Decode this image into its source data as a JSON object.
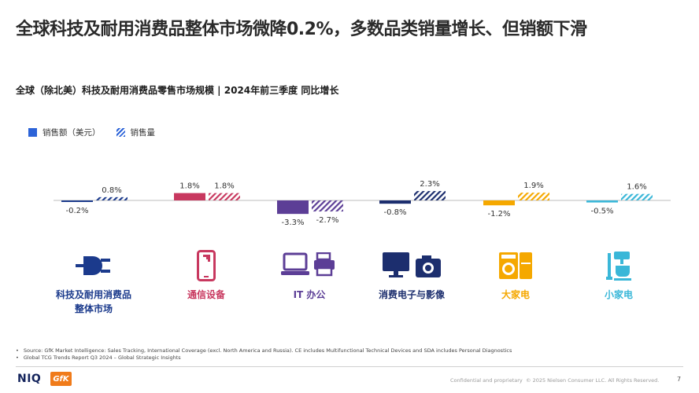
{
  "slide": {
    "title": "全球科技及耐用消费品整体市场微降0.2%，多数品类销量增长、但销额下滑",
    "subtitle": "全球（除北美）科技及耐用消费品零售市场规模 | 2024年前三季度 同比增长"
  },
  "legend": {
    "value_label": "销售额（美元）",
    "volume_label": "销售量"
  },
  "categories": [
    {
      "name": "科技及耐用消费品整体市场",
      "line1": "科技及耐用消费品",
      "line2": "整体市场",
      "color": "#1b3a8c",
      "icon": "plug-icon"
    },
    {
      "name": "通信设备",
      "line1": "通信设备",
      "line2": "",
      "color": "#c8385f",
      "icon": "smartphone-icon"
    },
    {
      "name": "IT 办公",
      "line1": "IT 办公",
      "line2": "",
      "color": "#5c3e96",
      "icon": "laptop-printer-icon"
    },
    {
      "name": "消费电子与影像",
      "line1": "消费电子与影像",
      "line2": "",
      "color": "#1c2e6e",
      "icon": "monitor-camera-icon"
    },
    {
      "name": "大家电",
      "line1": "大家电",
      "line2": "",
      "color": "#f5a800",
      "icon": "washing-machine-icon"
    },
    {
      "name": "小家电",
      "line1": "小家电",
      "line2": "",
      "color": "#3ab7d8",
      "icon": "coffee-machine-icon"
    }
  ],
  "chart_data": {
    "type": "bar",
    "categories": [
      "科技及耐用消费品整体市场",
      "通信设备",
      "IT 办公",
      "消费电子与影像",
      "大家电",
      "小家电"
    ],
    "series": [
      {
        "name": "销售额（美元）",
        "values": [
          -0.2,
          1.8,
          -3.3,
          -0.8,
          -1.2,
          -0.5
        ],
        "labels": [
          "-0.2%",
          "1.8%",
          "-3.3%",
          "-0.8%",
          "-1.2%",
          "-0.5%"
        ]
      },
      {
        "name": "销售量",
        "values": [
          0.8,
          1.8,
          -2.7,
          2.3,
          1.9,
          1.6
        ],
        "labels": [
          "0.8%",
          "1.8%",
          "-2.7%",
          "2.3%",
          "1.9%",
          "1.6%"
        ]
      }
    ],
    "unit": "%",
    "title": "全球（除北美）科技及耐用消费品零售市场规模 | 2024年前三季度 同比增长",
    "legend_position": "top-left",
    "grid": false
  },
  "footnotes": [
    "Source: GfK Market Intelligence: Sales Tracking, International Coverage (excl. North America and Russia). CE includes Multifunctional Technical Devices and SDA includes Personal Diagnostics",
    "Global TCG Trends Report Q3 2024 – Global Strategic Insights"
  ],
  "footer": {
    "logo_niq": "NIQ",
    "logo_gfk": "GfK",
    "confidential": "Confidential and proprietary",
    "copyright": "© 2025 Nielsen Consumer LLC. All Rights Reserved.",
    "page_number": "7"
  }
}
